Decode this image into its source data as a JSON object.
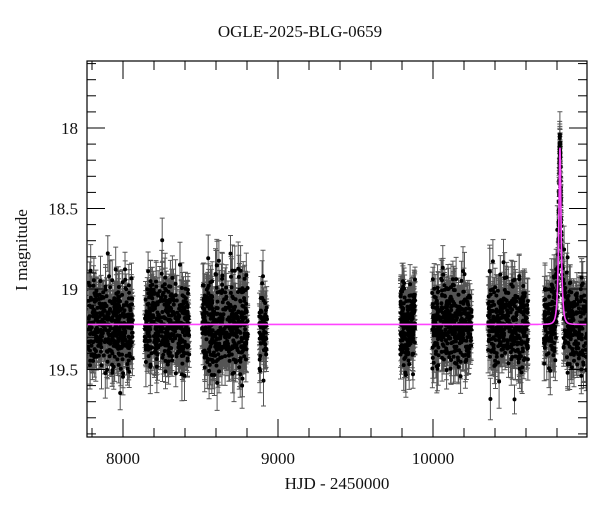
{
  "chart_data": {
    "type": "scatter",
    "title": "OGLE-2025-BLG-0659",
    "xlabel": "HJD - 2450000",
    "ylabel": "I magnitude",
    "xlim": [
      7768,
      10995
    ],
    "ylim": [
      19.92,
      17.58
    ],
    "y_inverted": true,
    "grid": false,
    "legend": null,
    "x_ticks": {
      "major": [
        8000,
        9000,
        10000
      ],
      "minor_step": 200
    },
    "y_ticks": {
      "major": [
        18,
        18.5,
        19,
        19.5
      ],
      "minor_step": 0.1
    },
    "colors": {
      "points": "#000000",
      "errorbars": "#555555",
      "model": "#ff44ff",
      "frame": "#000000"
    },
    "model": {
      "type": "PSPL microlensing fit",
      "baseline_mag": 19.22,
      "peak_mag": 18.12,
      "t0": 10819,
      "tE_approx": 14
    },
    "seasons": [
      {
        "start": 7775,
        "end": 8065,
        "n": 420,
        "mean": 19.22,
        "sigma": 0.13,
        "err": 0.12
      },
      {
        "start": 8140,
        "end": 8430,
        "n": 420,
        "mean": 19.22,
        "sigma": 0.13,
        "err": 0.12
      },
      {
        "start": 8510,
        "end": 8805,
        "n": 420,
        "mean": 19.24,
        "sigma": 0.14,
        "err": 0.13
      },
      {
        "start": 8880,
        "end": 8930,
        "n": 70,
        "mean": 19.22,
        "sigma": 0.12,
        "err": 0.12
      },
      {
        "start": 9790,
        "end": 9885,
        "n": 200,
        "mean": 19.22,
        "sigma": 0.12,
        "err": 0.12
      },
      {
        "start": 9995,
        "end": 10250,
        "n": 380,
        "mean": 19.22,
        "sigma": 0.13,
        "err": 0.12
      },
      {
        "start": 10355,
        "end": 10613,
        "n": 380,
        "mean": 19.21,
        "sigma": 0.13,
        "err": 0.12
      },
      {
        "start": 10716,
        "end": 10995,
        "n": 420,
        "mean": 19.22,
        "sigma": 0.13,
        "err": 0.12
      }
    ],
    "sample_points": [
      {
        "t": 7850,
        "mag": 19.15,
        "err": 0.12
      },
      {
        "t": 8000,
        "mag": 19.3,
        "err": 0.13
      },
      {
        "t": 8300,
        "mag": 19.2,
        "err": 0.12
      },
      {
        "t": 8650,
        "mag": 19.25,
        "err": 0.14
      },
      {
        "t": 8905,
        "mag": 19.18,
        "err": 0.11
      },
      {
        "t": 9840,
        "mag": 19.22,
        "err": 0.12
      },
      {
        "t": 10120,
        "mag": 19.24,
        "err": 0.12
      },
      {
        "t": 10480,
        "mag": 19.2,
        "err": 0.12
      },
      {
        "t": 10819,
        "mag": 18.05,
        "err": 0.06
      },
      {
        "t": 10820,
        "mag": 18.1,
        "err": 0.06
      },
      {
        "t": 10900,
        "mag": 19.25,
        "err": 0.13
      }
    ]
  }
}
